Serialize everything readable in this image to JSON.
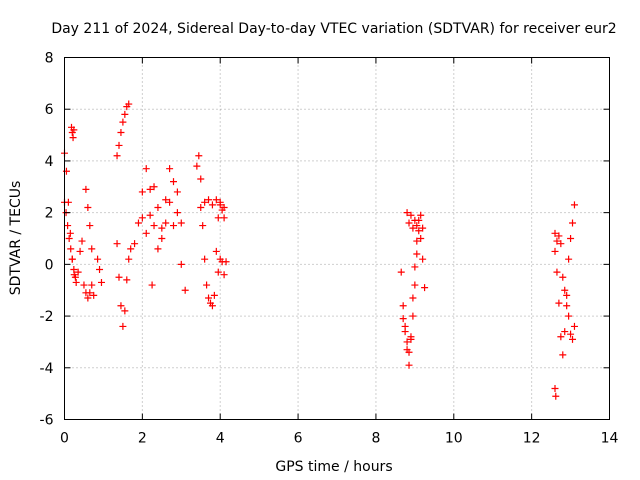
{
  "chart_data": {
    "type": "scatter",
    "title": "Day 211 of 2024, Sidereal Day-to-day VTEC variation (SDTVAR) for receiver eur2",
    "xlabel": "GPS time / hours",
    "ylabel": "SDTVAR / TECUs",
    "xlim": [
      0,
      14
    ],
    "ylim": [
      -6,
      8
    ],
    "xticks": [
      0,
      2,
      4,
      6,
      8,
      10,
      12,
      14
    ],
    "yticks": [
      -6,
      -4,
      -2,
      0,
      2,
      4,
      6,
      8
    ],
    "grid": true,
    "marker": "+",
    "color": "#ff0000",
    "series": [
      {
        "name": "SDTVAR",
        "segments": [
          {
            "x": [
              0.0,
              0.05,
              0.1,
              0.15,
              0.2,
              0.25,
              0.3,
              0.35,
              0.4,
              0.45
            ],
            "y": [
              4.3,
              3.6,
              2.4,
              1.2,
              0.2,
              -0.4,
              -0.7,
              -0.3,
              0.5,
              0.9
            ]
          },
          {
            "x": [
              0.0,
              0.04,
              0.08,
              0.12,
              0.16,
              0.2,
              0.24,
              0.28
            ],
            "y": [
              2.4,
              2.0,
              1.5,
              1.0,
              0.6,
              0.2,
              -0.2,
              -0.5
            ]
          },
          {
            "x": [
              0.18,
              0.2,
              0.22,
              0.24
            ],
            "y": [
              5.3,
              5.1,
              4.9,
              5.2
            ]
          },
          {
            "x": [
              0.5,
              0.55,
              0.6,
              0.65,
              0.7,
              0.75
            ],
            "y": [
              -0.8,
              -1.1,
              -1.3,
              -1.1,
              -0.8,
              -1.2
            ]
          },
          {
            "x": [
              0.55,
              0.6,
              0.65,
              0.7
            ],
            "y": [
              2.9,
              2.2,
              1.5,
              0.6
            ]
          },
          {
            "x": [
              0.85,
              0.9,
              0.95
            ],
            "y": [
              0.2,
              -0.2,
              -0.7
            ]
          },
          {
            "x": [
              1.35,
              1.4,
              1.45,
              1.5,
              1.55,
              1.6,
              1.65
            ],
            "y": [
              4.2,
              4.6,
              5.1,
              5.5,
              5.8,
              6.1,
              6.2
            ]
          },
          {
            "x": [
              1.35,
              1.4,
              1.45,
              1.5,
              1.55,
              1.6,
              1.65,
              1.7
            ],
            "y": [
              0.8,
              -0.5,
              -1.6,
              -2.4,
              -1.8,
              -0.6,
              0.2,
              0.6
            ]
          },
          {
            "x": [
              1.8,
              1.9,
              2.0,
              2.1,
              2.2,
              2.3,
              2.4,
              2.5,
              2.6,
              2.7,
              2.8,
              2.9,
              3.0,
              3.1
            ],
            "y": [
              0.8,
              1.6,
              2.8,
              3.7,
              2.9,
              1.5,
              0.6,
              1.4,
              2.5,
              3.7,
              3.2,
              2.0,
              0.0,
              -1.0
            ]
          },
          {
            "x": [
              2.0,
              2.1,
              2.2,
              2.3,
              2.4,
              2.5,
              2.6,
              2.7,
              2.8,
              2.9,
              3.0
            ],
            "y": [
              1.8,
              1.2,
              1.9,
              3.0,
              2.2,
              1.0,
              1.6,
              2.4,
              1.5,
              2.8,
              1.6
            ]
          },
          {
            "x": [
              2.25
            ],
            "y": [
              -0.8
            ]
          },
          {
            "x": [
              3.4,
              3.45,
              3.5,
              3.55,
              3.6,
              3.65,
              3.7,
              3.75,
              3.8,
              3.85,
              3.9,
              3.95,
              4.0,
              4.05,
              4.1
            ],
            "y": [
              3.8,
              4.2,
              3.3,
              1.5,
              0.2,
              -0.8,
              -1.3,
              -1.5,
              -1.6,
              -1.2,
              0.5,
              1.8,
              2.3,
              2.1,
              1.8
            ]
          },
          {
            "x": [
              3.5,
              3.6,
              3.7,
              3.8,
              3.9,
              4.0,
              4.1
            ],
            "y": [
              2.2,
              2.4,
              2.5,
              2.3,
              2.5,
              2.4,
              2.2
            ]
          },
          {
            "x": [
              3.95,
              4.0,
              4.05,
              4.1,
              4.15
            ],
            "y": [
              -0.3,
              0.2,
              0.1,
              -0.4,
              0.1
            ]
          },
          {
            "x": [
              8.65,
              8.7,
              8.75,
              8.8,
              8.85,
              8.9,
              8.95,
              9.0,
              9.05,
              9.1,
              9.15,
              9.2
            ],
            "y": [
              -0.3,
              -1.6,
              -2.6,
              -3.3,
              -3.9,
              -2.8,
              -1.3,
              -0.1,
              0.9,
              1.7,
              1.9,
              1.4
            ]
          },
          {
            "x": [
              8.7,
              8.75,
              8.8,
              8.85,
              8.9,
              8.95,
              9.0,
              9.05,
              9.1,
              9.15,
              9.2,
              9.25
            ],
            "y": [
              -2.1,
              -2.4,
              -3.0,
              -3.4,
              -2.9,
              -2.0,
              -0.8,
              0.4,
              1.3,
              1.0,
              0.2,
              -0.9
            ]
          },
          {
            "x": [
              8.8,
              8.85,
              8.9,
              8.95,
              9.0,
              9.05
            ],
            "y": [
              2.0,
              1.6,
              1.9,
              1.4,
              1.7,
              1.5
            ]
          },
          {
            "x": [
              12.6,
              12.65,
              12.7,
              12.75,
              12.8,
              12.85,
              12.9,
              12.95,
              13.0,
              13.05,
              13.1
            ],
            "y": [
              1.2,
              -0.3,
              -1.5,
              -2.8,
              -3.5,
              -2.6,
              -1.2,
              0.2,
              1.0,
              1.6,
              2.3
            ]
          },
          {
            "x": [
              12.6,
              12.65,
              12.7,
              12.75,
              12.8,
              12.85,
              12.9,
              12.95,
              13.0,
              13.05,
              13.1
            ],
            "y": [
              0.5,
              0.9,
              1.1,
              0.8,
              -0.5,
              -1.0,
              -1.6,
              -2.0,
              -2.7,
              -2.9,
              -2.4
            ]
          },
          {
            "x": [
              12.6,
              12.62
            ],
            "y": [
              -4.8,
              -5.1
            ]
          }
        ]
      }
    ]
  }
}
